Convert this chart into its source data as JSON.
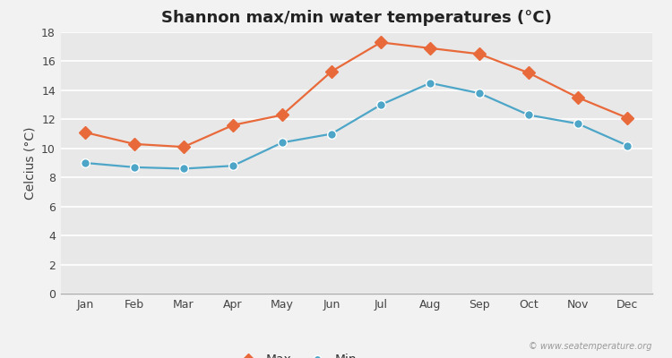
{
  "title": "Shannon max/min water temperatures (°C)",
  "ylabel": "Celcius (°C)",
  "months": [
    "Jan",
    "Feb",
    "Mar",
    "Apr",
    "May",
    "Jun",
    "Jul",
    "Aug",
    "Sep",
    "Oct",
    "Nov",
    "Dec"
  ],
  "max_values": [
    11.1,
    10.3,
    10.1,
    11.6,
    12.3,
    15.3,
    17.3,
    16.9,
    16.5,
    15.2,
    13.5,
    12.1
  ],
  "min_values": [
    9.0,
    8.7,
    8.6,
    8.8,
    10.4,
    11.0,
    13.0,
    14.5,
    13.8,
    12.3,
    11.7,
    10.2
  ],
  "max_color": "#e8693a",
  "min_color": "#4da6c8",
  "bg_color": "#f2f2f2",
  "plot_bg_color": "#e8e8e8",
  "grid_color": "#ffffff",
  "spine_color": "#aaaaaa",
  "ylim": [
    0,
    18
  ],
  "yticks": [
    0,
    2,
    4,
    6,
    8,
    10,
    12,
    14,
    16,
    18
  ],
  "watermark": "© www.seatemperature.org",
  "title_fontsize": 13,
  "axis_label_fontsize": 10,
  "tick_fontsize": 9,
  "legend_fontsize": 10,
  "marker_size_max": 7,
  "marker_size_min": 7,
  "linewidth": 1.6
}
